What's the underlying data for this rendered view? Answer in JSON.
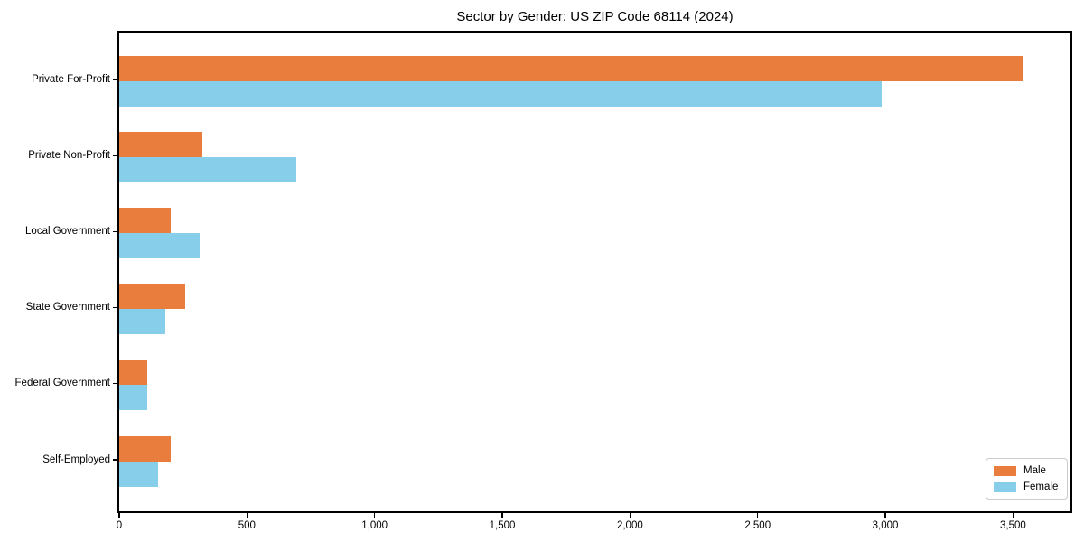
{
  "figure": {
    "title": "Sector by Gender: US ZIP Code 68114 (2024)"
  },
  "chart_data": {
    "type": "bar",
    "orientation": "horizontal",
    "title": "Sector by Gender: US ZIP Code 68114 (2024)",
    "categories": [
      "Private For-Profit",
      "Private Non-Profit",
      "Local Government",
      "State Government",
      "Federal Government",
      "Self-Employed"
    ],
    "series": [
      {
        "name": "Male",
        "color": "#E87D3E",
        "values": [
          3540,
          325,
          200,
          258,
          108,
          200
        ]
      },
      {
        "name": "Female",
        "color": "#87CEEB",
        "values": [
          2985,
          695,
          315,
          182,
          108,
          153
        ]
      }
    ],
    "xlabel": "",
    "ylabel": "",
    "xlim": [
      0,
      3725
    ],
    "xticks": [
      0,
      500,
      1000,
      1500,
      2000,
      2500,
      3000,
      3500
    ],
    "xtick_labels": [
      "0",
      "500",
      "1,000",
      "1,500",
      "2,000",
      "2,500",
      "3,000",
      "3,500"
    ],
    "grid": false,
    "legend": {
      "position": "lower right",
      "entries": [
        "Male",
        "Female"
      ]
    }
  }
}
